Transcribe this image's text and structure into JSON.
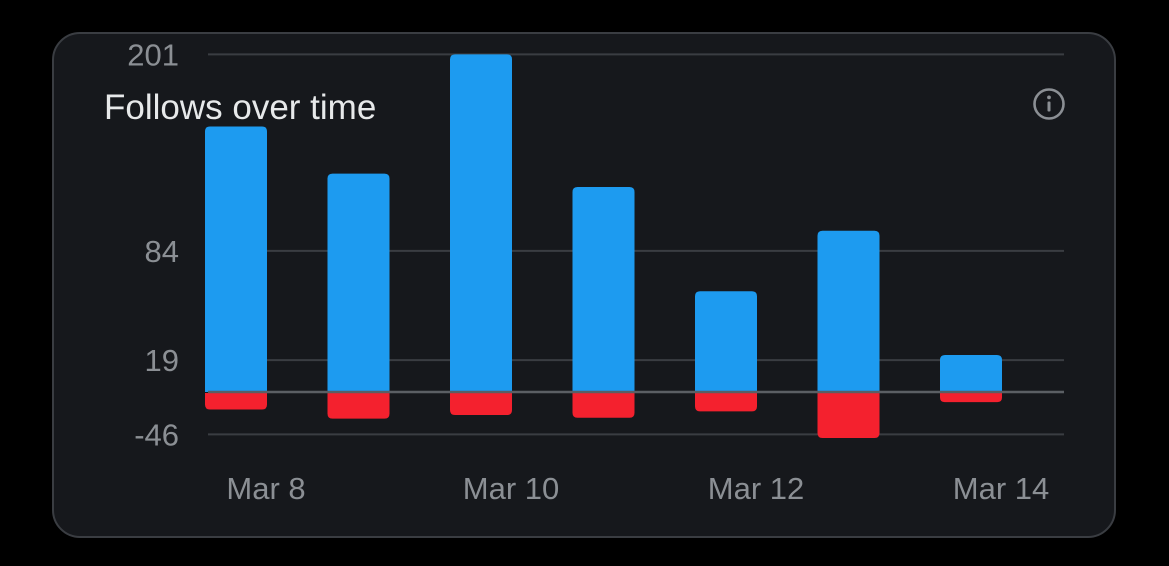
{
  "card": {
    "title": "Follows over time"
  },
  "icons": {
    "info": "info-icon"
  },
  "colors": {
    "card_background": "#16181c",
    "follows_bar": "#1d9bf0",
    "unfollows_bar": "#f4212e",
    "gridline": "#3a3d42",
    "axis_text": "#8b8f94"
  },
  "chart_data": {
    "type": "bar",
    "stacked": true,
    "x": [
      "Mar 8",
      "Mar 9",
      "Mar 10",
      "Mar 11",
      "Mar 12",
      "Mar 13",
      "Mar 14"
    ],
    "x_tick_labels": [
      "Mar 8",
      "Mar 10",
      "Mar 12",
      "Mar 14"
    ],
    "series": [
      {
        "values": [
          158,
          130,
          201,
          122,
          60,
          96,
          22
        ]
      },
      {
        "values": [
          -19,
          -29,
          -25,
          -28,
          -21,
          -50,
          -11
        ]
      }
    ],
    "y_ticks": [
      {
        "value": 201,
        "label": "201"
      },
      {
        "value": 84,
        "label": "84"
      },
      {
        "value": 19,
        "label": "19"
      },
      {
        "value": -46,
        "label": "-46"
      }
    ],
    "ylim": [
      -50,
      201
    ],
    "grid": true,
    "legend": "none"
  }
}
